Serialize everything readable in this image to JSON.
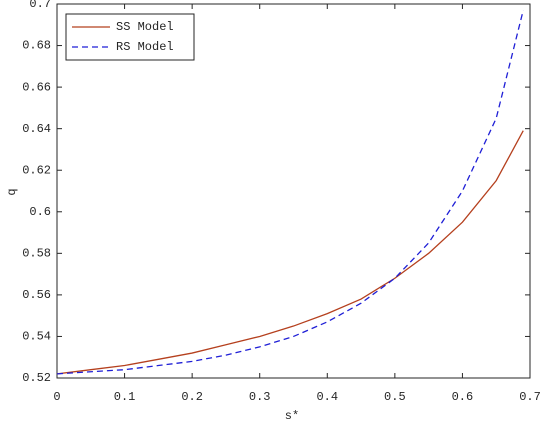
{
  "chart_data": {
    "type": "line",
    "x_label": "s*",
    "y_label": "q",
    "x": [
      0,
      0.05,
      0.1,
      0.15,
      0.2,
      0.25,
      0.3,
      0.35,
      0.4,
      0.45,
      0.5,
      0.55,
      0.6,
      0.65,
      0.69
    ],
    "series": [
      {
        "name": "SS Model",
        "color": "#b5401e",
        "dash": false,
        "values": [
          0.522,
          0.524,
          0.526,
          0.529,
          0.532,
          0.536,
          0.54,
          0.545,
          0.551,
          0.558,
          0.568,
          0.58,
          0.595,
          0.615,
          0.639
        ]
      },
      {
        "name": "RS Model",
        "color": "#1f1fd6",
        "dash": true,
        "values": [
          0.522,
          0.523,
          0.524,
          0.526,
          0.528,
          0.531,
          0.535,
          0.54,
          0.547,
          0.556,
          0.568,
          0.585,
          0.61,
          0.645,
          0.697
        ]
      }
    ],
    "xlim": [
      0,
      0.7
    ],
    "ylim": [
      0.52,
      0.7
    ],
    "xticks": [
      0,
      0.1,
      0.2,
      0.3,
      0.4,
      0.5,
      0.6,
      0.7
    ],
    "yticks": [
      0.52,
      0.54,
      0.56,
      0.58,
      0.6,
      0.62,
      0.64,
      0.66,
      0.68,
      0.7
    ],
    "legend": "upper-left",
    "grid": false
  }
}
